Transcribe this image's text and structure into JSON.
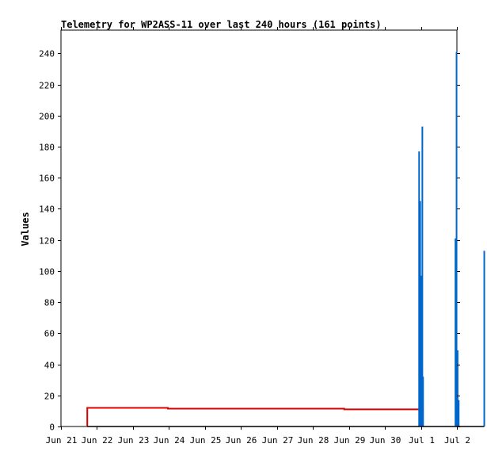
{
  "chart_data": {
    "type": "line",
    "title": "Telemetry for WP2ASS-11 over last 240 hours (161 points)",
    "xlabel": "",
    "ylabel": "Values",
    "x_ticks": [
      "Jun 21",
      "Jun 22",
      "Jun 23",
      "Jun 24",
      "Jun 25",
      "Jun 26",
      "Jun 27",
      "Jun 28",
      "Jun 29",
      "Jun 30",
      "Jul 1",
      "Jul 2"
    ],
    "x_range_days": [
      0,
      11
    ],
    "ylim": [
      0,
      255
    ],
    "y_ticks": [
      0,
      20,
      40,
      60,
      80,
      100,
      120,
      140,
      160,
      180,
      200,
      220,
      240
    ],
    "grid": false,
    "legend": "none",
    "series": [
      {
        "color": "#dd0000",
        "style": "step",
        "points": [
          [
            0.73,
            0
          ],
          [
            0.73,
            12
          ],
          [
            2.97,
            12
          ],
          [
            2.97,
            11.5
          ],
          [
            7.87,
            11.5
          ],
          [
            7.87,
            11
          ],
          [
            9.95,
            11
          ]
        ]
      },
      {
        "color": "#0066cc",
        "style": "impulse",
        "points": [
          [
            9.95,
            177
          ],
          [
            9.98,
            145
          ],
          [
            10.01,
            97
          ],
          [
            10.04,
            193
          ],
          [
            10.06,
            32
          ],
          [
            10.96,
            121
          ],
          [
            10.99,
            241
          ],
          [
            11.02,
            49
          ],
          [
            11.05,
            17
          ],
          [
            11.76,
            113
          ]
        ]
      },
      {
        "color": "#000000",
        "style": "baseline",
        "points": [
          [
            0.73,
            0
          ],
          [
            11.76,
            0
          ]
        ]
      }
    ]
  }
}
